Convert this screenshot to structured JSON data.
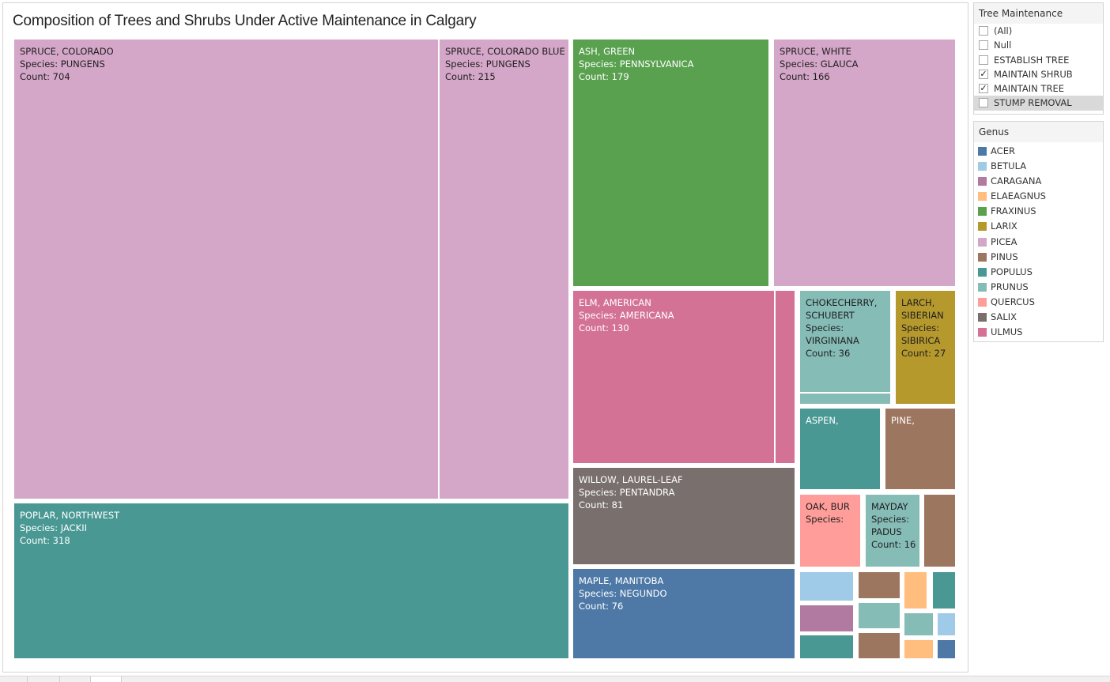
{
  "title": "Composition of Trees and Shrubs Under Active Maintenance in Calgary",
  "filter": {
    "title": "Tree Maintenance",
    "items": [
      {
        "label": "(All)",
        "checked": false,
        "highlighted": false
      },
      {
        "label": "Null",
        "checked": false,
        "highlighted": false
      },
      {
        "label": "ESTABLISH TREE",
        "checked": false,
        "highlighted": false
      },
      {
        "label": "MAINTAIN SHRUB",
        "checked": true,
        "highlighted": false
      },
      {
        "label": "MAINTAIN TREE",
        "checked": true,
        "highlighted": false
      },
      {
        "label": "STUMP REMOVAL",
        "checked": false,
        "highlighted": true
      }
    ]
  },
  "legend": {
    "title": "Genus",
    "items": [
      {
        "label": "ACER",
        "color": "#4e79a7"
      },
      {
        "label": "BETULA",
        "color": "#a0cbe8"
      },
      {
        "label": "CARAGANA",
        "color": "#b07aa1"
      },
      {
        "label": "ELAEAGNUS",
        "color": "#ffbe7d"
      },
      {
        "label": "FRAXINUS",
        "color": "#59a14f"
      },
      {
        "label": "LARIX",
        "color": "#b6992d"
      },
      {
        "label": "PICEA",
        "color": "#d4a6c8"
      },
      {
        "label": "PINUS",
        "color": "#9d7660"
      },
      {
        "label": "POPULUS",
        "color": "#499894"
      },
      {
        "label": "PRUNUS",
        "color": "#86bcb6"
      },
      {
        "label": "QUERCUS",
        "color": "#ff9d9a"
      },
      {
        "label": "SALIX",
        "color": "#79706e"
      },
      {
        "label": "ULMUS",
        "color": "#d37295"
      }
    ]
  },
  "chart_data": {
    "type": "treemap",
    "value_field": "Count",
    "color_field": "Genus",
    "tiles": [
      {
        "name": "SPRUCE, COLORADO",
        "genus": "PICEA",
        "species": "PUNGENS",
        "count": 704,
        "label": "SPRUCE, COLORADO\nSpecies: PUNGENS\nCount: 704",
        "label_dark": true
      },
      {
        "name": "SPRUCE, COLORADO BLUE",
        "genus": "PICEA",
        "species": "PUNGENS",
        "count": 215,
        "label": "SPRUCE, COLORADO BLUE\nSpecies: PUNGENS\nCount: 215",
        "label_dark": true
      },
      {
        "name": "POPLAR, NORTHWEST",
        "genus": "POPULUS",
        "species": "JACKII",
        "count": 318,
        "label": "POPLAR, NORTHWEST\nSpecies: JACKII\nCount: 318",
        "label_dark": false
      },
      {
        "name": "ASH, GREEN",
        "genus": "FRAXINUS",
        "species": "PENNSYLVANICA",
        "count": 179,
        "label": "ASH, GREEN\nSpecies: PENNSYLVANICA\nCount: 179",
        "label_dark": false
      },
      {
        "name": "SPRUCE, WHITE",
        "genus": "PICEA",
        "species": "GLAUCA",
        "count": 166,
        "label": "SPRUCE, WHITE\nSpecies: GLAUCA\nCount: 166",
        "label_dark": true
      },
      {
        "name": "ELM, AMERICAN",
        "genus": "ULMUS",
        "species": "AMERICANA",
        "count": 130,
        "label": "ELM, AMERICAN\nSpecies: AMERICANA\nCount: 130",
        "label_dark": false
      },
      {
        "name": "",
        "genus": "ULMUS",
        "label": "",
        "label_dark": false
      },
      {
        "name": "WILLOW, LAUREL-LEAF",
        "genus": "SALIX",
        "species": "PENTANDRA",
        "count": 81,
        "label": "WILLOW, LAUREL-LEAF\nSpecies: PENTANDRA\nCount: 81",
        "label_dark": false
      },
      {
        "name": "MAPLE, MANITOBA",
        "genus": "ACER",
        "species": "NEGUNDO",
        "count": 76,
        "label": "MAPLE, MANITOBA\nSpecies: NEGUNDO\nCount: 76",
        "label_dark": false
      },
      {
        "name": "CHOKECHERRY, SCHUBERT",
        "genus": "PRUNUS",
        "species": "VIRGINIANA",
        "count": 36,
        "label": "CHOKECHERRY,\nSCHUBERT\nSpecies:\nVIRGINIANA\nCount: 36",
        "label_dark": true
      },
      {
        "name": "",
        "genus": "PRUNUS",
        "label": "",
        "label_dark": true
      },
      {
        "name": "LARCH, SIBERIAN",
        "genus": "LARIX",
        "species": "SIBIRICA",
        "count": 27,
        "label": "LARCH,\nSIBERIAN\nSpecies:\nSIBIRICA\nCount: 27",
        "label_dark": true
      },
      {
        "name": "ASPEN,",
        "genus": "POPULUS",
        "label": "ASPEN,",
        "label_dark": false
      },
      {
        "name": "PINE,",
        "genus": "PINUS",
        "label": "PINE,",
        "label_dark": false
      },
      {
        "name": "OAK, BUR",
        "genus": "QUERCUS",
        "label": "OAK, BUR\nSpecies:",
        "label_dark": true
      },
      {
        "name": "MAYDAY",
        "genus": "PRUNUS",
        "species": "PADUS",
        "count": 16,
        "label": "MAYDAY\nSpecies:\nPADUS\nCount: 16",
        "label_dark": true
      },
      {
        "name": "",
        "genus": "PINUS",
        "label": "",
        "label_dark": false
      },
      {
        "name": "",
        "genus": "BETULA",
        "label": "",
        "label_dark": false
      },
      {
        "name": "",
        "genus": "PINUS",
        "label": "",
        "label_dark": false
      },
      {
        "name": "",
        "genus": "ELAEAGNUS",
        "label": "",
        "label_dark": false
      },
      {
        "name": "",
        "genus": "POPULUS",
        "label": "",
        "label_dark": false
      },
      {
        "name": "",
        "genus": "CARAGANA",
        "label": "",
        "label_dark": false
      },
      {
        "name": "",
        "genus": "PRUNUS",
        "label": "",
        "label_dark": false
      },
      {
        "name": "",
        "genus": "PRUNUS",
        "label": "",
        "label_dark": false
      },
      {
        "name": "",
        "genus": "BETULA",
        "label": "",
        "label_dark": false
      },
      {
        "name": "",
        "genus": "POPULUS",
        "label": "",
        "label_dark": false
      },
      {
        "name": "",
        "genus": "PINUS",
        "label": "",
        "label_dark": false
      },
      {
        "name": "",
        "genus": "ELAEAGNUS",
        "label": "",
        "label_dark": false
      },
      {
        "name": "",
        "genus": "ACER",
        "label": "",
        "label_dark": false
      }
    ]
  }
}
